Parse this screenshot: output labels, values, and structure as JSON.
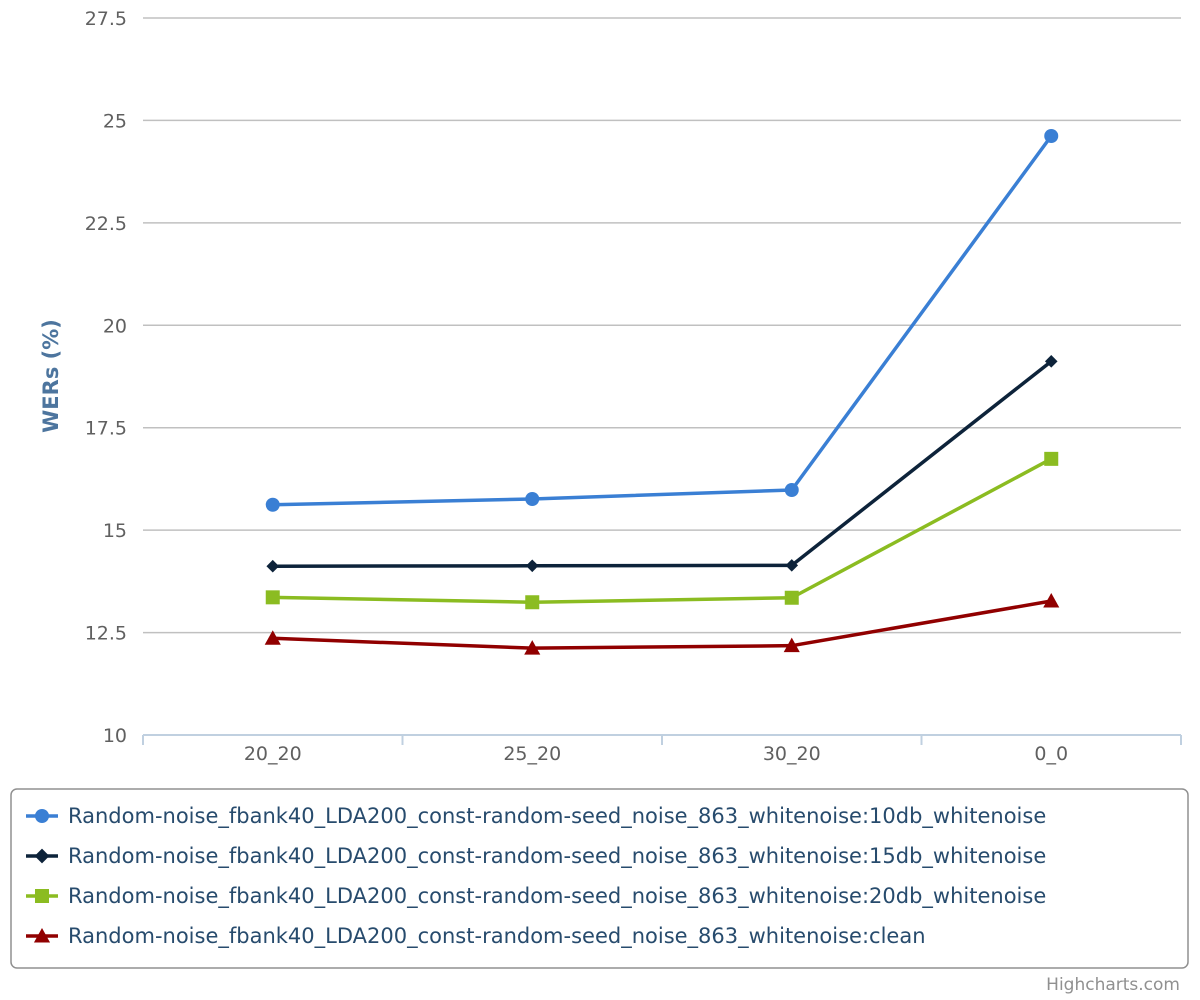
{
  "chart_data": {
    "type": "line",
    "categories": [
      "20_20",
      "25_20",
      "30_20",
      "0_0"
    ],
    "ylabel": "WERs (%)",
    "ylim": [
      10,
      27.5
    ],
    "yticks": [
      10,
      12.5,
      15,
      17.5,
      20,
      22.5,
      25,
      27.5
    ],
    "ytick_labels": [
      "10",
      "12.5",
      "15",
      "17.5",
      "20",
      "22.5",
      "25",
      "27.5"
    ],
    "grid": true,
    "legend_position": "bottom",
    "series": [
      {
        "name": "Random-noise_fbank40_LDA200_const-random-seed_noise_863_whitenoise:10db_whitenoise",
        "values": [
          15.62,
          15.76,
          15.98,
          24.62
        ],
        "color": "#3a7fd4",
        "marker": "circle"
      },
      {
        "name": "Random-noise_fbank40_LDA200_const-random-seed_noise_863_whitenoise:15db_whitenoise",
        "values": [
          14.12,
          14.13,
          14.14,
          19.12
        ],
        "color": "#0d233a",
        "marker": "diamond"
      },
      {
        "name": "Random-noise_fbank40_LDA200_const-random-seed_noise_863_whitenoise:20db_whitenoise",
        "values": [
          13.36,
          13.24,
          13.35,
          16.74
        ],
        "color": "#8bbc21",
        "marker": "square"
      },
      {
        "name": "Random-noise_fbank40_LDA200_const-random-seed_noise_863_whitenoise:clean",
        "values": [
          12.36,
          12.12,
          12.18,
          13.27
        ],
        "color": "#910000",
        "marker": "triangle"
      }
    ]
  },
  "credits": "Highcharts.com"
}
